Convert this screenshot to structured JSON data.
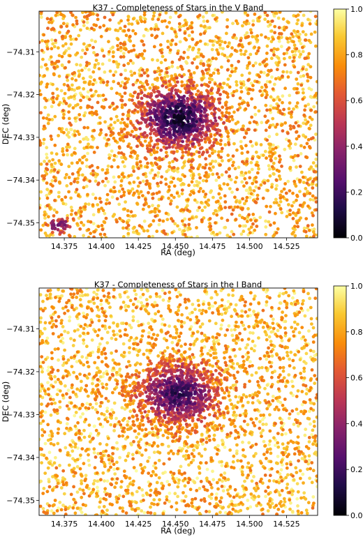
{
  "chart_data": [
    {
      "type": "scatter",
      "title": "K37 - Completeness of Stars in the V Band",
      "xlabel": "RA (deg)",
      "ylabel": "DEC (deg)",
      "xlim": [
        14.358,
        14.546
      ],
      "ylim": [
        -74.3535,
        -74.3005
      ],
      "x_ticks": [
        14.375,
        14.4,
        14.425,
        14.45,
        14.475,
        14.5,
        14.525
      ],
      "x_tick_labels": [
        "14.375",
        "14.400",
        "14.425",
        "14.450",
        "14.475",
        "14.500",
        "14.525"
      ],
      "y_ticks": [
        -74.31,
        -74.32,
        -74.33,
        -74.34,
        -74.35
      ],
      "y_tick_labels": [
        "−74.31",
        "−74.32",
        "−74.33",
        "−74.34",
        "−74.35"
      ],
      "colormap": "inferno",
      "color_range": [
        0.0,
        1.0
      ],
      "colorbar_ticks": [
        0.0,
        0.2,
        0.4,
        0.6,
        0.8,
        1.0
      ],
      "colorbar_tick_labels": [
        "0.0",
        "0.2",
        "0.4",
        "0.6",
        "0.8",
        "1.0"
      ],
      "grid": false,
      "cluster_center": [
        14.452,
        -74.3255
      ],
      "cluster_min_completeness": 0.15,
      "field_completeness": 0.82,
      "secondary_dip": {
        "center": [
          14.371,
          -74.3505
        ],
        "min_completeness": 0.3
      },
      "points": [
        [
          14.452,
          -74.3255,
          0.15
        ],
        [
          14.447,
          -74.3268,
          0.22
        ],
        [
          14.458,
          -74.3242,
          0.18
        ],
        [
          14.441,
          -74.3251,
          0.28
        ],
        [
          14.462,
          -74.3264,
          0.25
        ],
        [
          14.455,
          -74.3231,
          0.32
        ],
        [
          14.444,
          -74.3282,
          0.35
        ],
        [
          14.436,
          -74.3238,
          0.45
        ],
        [
          14.468,
          -74.3249,
          0.42
        ],
        [
          14.449,
          -74.3214,
          0.48
        ],
        [
          14.431,
          -74.3272,
          0.55
        ],
        [
          14.473,
          -74.3285,
          0.58
        ],
        [
          14.371,
          -74.3505,
          0.3
        ],
        [
          14.367,
          -74.3513,
          0.35
        ],
        [
          14.376,
          -74.3497,
          0.38
        ],
        [
          14.395,
          -74.3102,
          0.92
        ],
        [
          14.512,
          -74.3155,
          0.88
        ],
        [
          14.384,
          -74.3405,
          0.8
        ],
        [
          14.53,
          -74.3452,
          0.9
        ],
        [
          14.418,
          -74.3483,
          0.78
        ]
      ]
    },
    {
      "type": "scatter",
      "title": "K37 - Completeness of Stars in the I Band",
      "xlabel": "RA (deg)",
      "ylabel": "DEC (deg)",
      "xlim": [
        14.358,
        14.546
      ],
      "ylim": [
        -74.3535,
        -74.3005
      ],
      "x_ticks": [
        14.375,
        14.4,
        14.425,
        14.45,
        14.475,
        14.5,
        14.525
      ],
      "x_tick_labels": [
        "14.375",
        "14.400",
        "14.425",
        "14.450",
        "14.475",
        "14.500",
        "14.525"
      ],
      "y_ticks": [
        -74.31,
        -74.32,
        -74.33,
        -74.34,
        -74.35
      ],
      "y_tick_labels": [
        "−74.31",
        "−74.32",
        "−74.33",
        "−74.34",
        "−74.35"
      ],
      "colormap": "inferno",
      "color_range": [
        0.0,
        1.0
      ],
      "colorbar_ticks": [
        0.0,
        0.2,
        0.4,
        0.6,
        0.8,
        1.0
      ],
      "colorbar_tick_labels": [
        "0.0",
        "0.2",
        "0.4",
        "0.6",
        "0.8",
        "1.0"
      ],
      "grid": false,
      "cluster_center": [
        14.452,
        -74.3252
      ],
      "cluster_min_completeness": 0.25,
      "field_completeness": 0.84,
      "points": [
        [
          14.452,
          -74.3252,
          0.25
        ],
        [
          14.447,
          -74.3265,
          0.3
        ],
        [
          14.458,
          -74.3238,
          0.28
        ],
        [
          14.441,
          -74.3248,
          0.36
        ],
        [
          14.462,
          -74.3261,
          0.33
        ],
        [
          14.455,
          -74.3228,
          0.4
        ],
        [
          14.444,
          -74.3279,
          0.42
        ],
        [
          14.436,
          -74.3235,
          0.52
        ],
        [
          14.468,
          -74.3246,
          0.5
        ],
        [
          14.449,
          -74.3211,
          0.55
        ],
        [
          14.431,
          -74.3269,
          0.6
        ],
        [
          14.473,
          -74.3282,
          0.62
        ],
        [
          14.395,
          -74.3102,
          0.92
        ],
        [
          14.512,
          -74.3155,
          0.88
        ],
        [
          14.384,
          -74.3405,
          0.82
        ],
        [
          14.53,
          -74.3452,
          0.9
        ],
        [
          14.418,
          -74.3483,
          0.8
        ]
      ]
    }
  ]
}
